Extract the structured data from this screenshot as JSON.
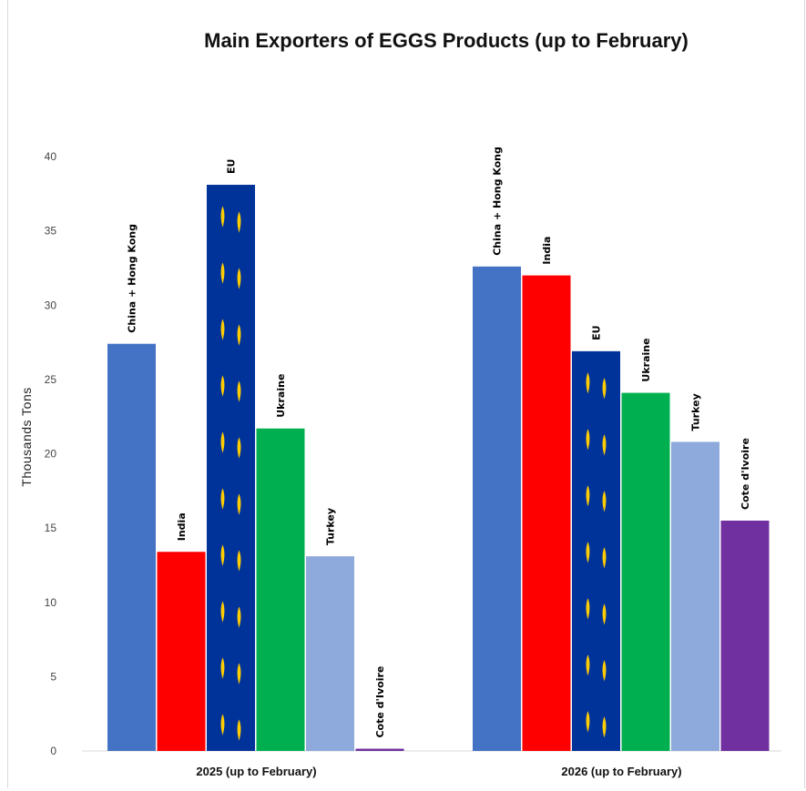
{
  "chart_data": {
    "type": "bar",
    "title": "Main Exporters of EGGS Products (up to February)",
    "ylabel": "Thousands Tons",
    "xlabel": "",
    "ylim": [
      0,
      40
    ],
    "yticks": [
      "0",
      "5",
      "10",
      "15",
      "20",
      "25",
      "30",
      "35",
      "40"
    ],
    "grid": false,
    "legend": "none",
    "groups": [
      {
        "label": "2025 (up to February)",
        "bars": [
          {
            "name": "China + Hong Kong",
            "value": 27.4,
            "color": "#4472C4"
          },
          {
            "name": "India",
            "value": 13.4,
            "color": "#FF0000"
          },
          {
            "name": "EU",
            "value": 38.1,
            "color": "#003399",
            "pattern": "eu-stars"
          },
          {
            "name": "Ukraine",
            "value": 21.7,
            "color": "#00B050"
          },
          {
            "name": "Turkey",
            "value": 13.1,
            "color": "#8EA9DB"
          },
          {
            "name": "Cote d'Ivoire",
            "value": 0.15,
            "color": "#7030A0"
          }
        ]
      },
      {
        "label": "2026 (up to February)",
        "bars": [
          {
            "name": "China + Hong Kong",
            "value": 32.6,
            "color": "#4472C4"
          },
          {
            "name": "India",
            "value": 32.0,
            "color": "#FF0000"
          },
          {
            "name": "EU",
            "value": 26.9,
            "color": "#003399",
            "pattern": "eu-stars"
          },
          {
            "name": "Ukraine",
            "value": 24.1,
            "color": "#00B050"
          },
          {
            "name": "Turkey",
            "value": 20.8,
            "color": "#8EA9DB"
          },
          {
            "name": "Cote d'Ivoire",
            "value": 15.5,
            "color": "#7030A0"
          }
        ]
      }
    ]
  }
}
